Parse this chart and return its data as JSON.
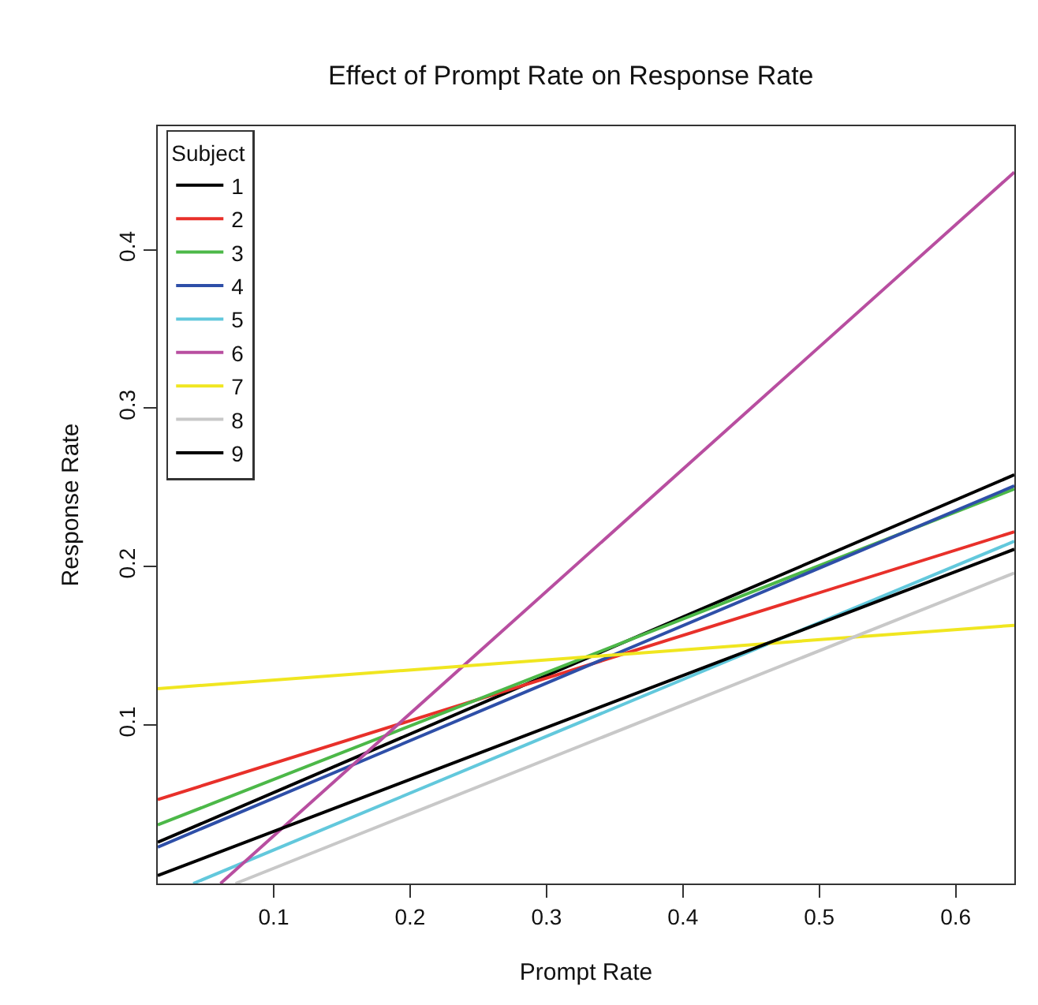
{
  "chart_data": {
    "type": "line",
    "title": "Effect of Prompt Rate on Response Rate",
    "xlabel": "Prompt Rate",
    "ylabel": "Response Rate",
    "legend_title": "Subject",
    "legend": "top left",
    "xlim": [
      0.015,
      0.643
    ],
    "ylim": [
      0.0,
      0.478
    ],
    "xticks": [
      0.1,
      0.2,
      0.3,
      0.4,
      0.5,
      0.6
    ],
    "yticks": [
      0.1,
      0.2,
      0.3,
      0.4
    ],
    "grid": false,
    "marker": "none",
    "line_style": "solid",
    "series": [
      {
        "name": "1",
        "color": "#000000",
        "x": [
          0.015,
          0.643
        ],
        "values": [
          0.026,
          0.258
        ]
      },
      {
        "name": "2",
        "color": "#e8302a",
        "x": [
          0.015,
          0.643
        ],
        "values": [
          0.053,
          0.222
        ]
      },
      {
        "name": "3",
        "color": "#4cb848",
        "x": [
          0.015,
          0.643
        ],
        "values": [
          0.037,
          0.249
        ]
      },
      {
        "name": "4",
        "color": "#2e4fa8",
        "x": [
          0.015,
          0.643
        ],
        "values": [
          0.023,
          0.251
        ]
      },
      {
        "name": "5",
        "color": "#62c8dc",
        "x": [
          0.041,
          0.643
        ],
        "values": [
          0.0,
          0.216
        ]
      },
      {
        "name": "6",
        "color": "#b84ea0",
        "x": [
          0.061,
          0.643
        ],
        "values": [
          0.0,
          0.449
        ]
      },
      {
        "name": "7",
        "color": "#f0e620",
        "x": [
          0.015,
          0.643
        ],
        "values": [
          0.123,
          0.163
        ]
      },
      {
        "name": "8",
        "color": "#c8c8c8",
        "x": [
          0.072,
          0.643
        ],
        "values": [
          0.0,
          0.196
        ]
      },
      {
        "name": "9",
        "color": "#000000",
        "x": [
          0.015,
          0.643
        ],
        "values": [
          0.005,
          0.211
        ]
      }
    ]
  }
}
